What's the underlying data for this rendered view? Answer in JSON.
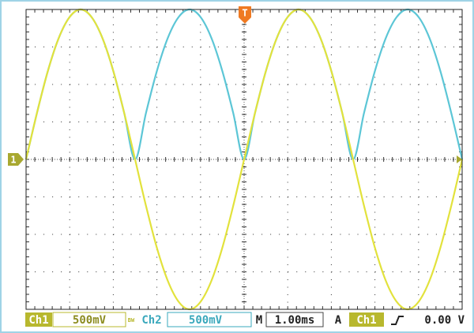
{
  "chart_data": {
    "type": "line",
    "x": [
      0,
      0.25,
      0.5,
      0.75,
      1,
      1.25,
      1.5,
      1.75,
      2,
      2.25,
      2.5,
      2.75,
      3,
      3.25,
      3.5,
      3.75,
      4,
      4.25,
      4.5,
      4.75,
      5,
      5.25,
      5.5,
      5.75,
      6,
      6.25,
      6.5,
      6.75,
      7,
      7.25,
      7.5,
      7.75,
      8,
      8.25,
      8.5,
      8.75,
      9,
      9.25,
      9.5,
      9.75,
      10
    ],
    "series": [
      {
        "name": "Ch2",
        "color": "#5cc6d6",
        "values": [
          0,
          0.62,
          1.18,
          1.62,
          1.9,
          2,
          1.9,
          1.62,
          1.18,
          0.62,
          0,
          0.62,
          1.18,
          1.62,
          1.9,
          2,
          1.9,
          1.62,
          1.18,
          0.62,
          0,
          0.62,
          1.18,
          1.62,
          1.9,
          2,
          1.9,
          1.62,
          1.18,
          0.62,
          0,
          0.62,
          1.18,
          1.62,
          1.9,
          2,
          1.9,
          1.62,
          1.18,
          0.62,
          0
        ]
      },
      {
        "name": "Ch1",
        "color": "#e2e23c",
        "values": [
          0,
          0.62,
          1.18,
          1.62,
          1.9,
          2,
          1.9,
          1.62,
          1.18,
          0.62,
          0,
          -0.62,
          -1.18,
          -1.62,
          -1.9,
          -2,
          -1.9,
          -1.62,
          -1.18,
          -0.62,
          0,
          0.62,
          1.18,
          1.62,
          1.9,
          2,
          1.9,
          1.62,
          1.18,
          0.62,
          0,
          -0.62,
          -1.18,
          -1.62,
          -1.9,
          -2,
          -1.9,
          -1.62,
          -1.18,
          -0.62,
          0
        ]
      }
    ],
    "xlim": [
      0,
      10
    ],
    "ylim": [
      -2,
      2
    ]
  },
  "markers": {
    "ground": "1",
    "trigger": "T"
  },
  "status_bar": {
    "ch1_scale": "500mV",
    "bw_limit": "BW",
    "ch2_scale": "500mV",
    "time_label": "M",
    "time_scale": "1.00ms",
    "trigger_label": "A",
    "trigger_level": "0.00 V"
  }
}
